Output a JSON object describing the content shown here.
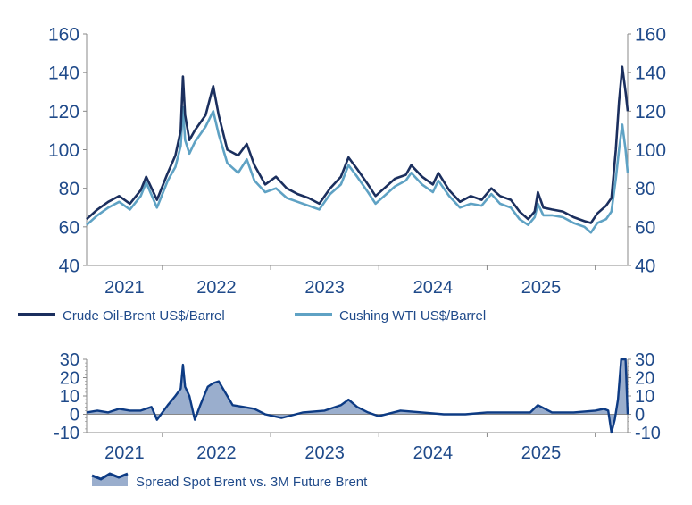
{
  "colors": {
    "brent": "#1b2f5e",
    "wti": "#5fa2c4",
    "spread_line": "#0d3b84",
    "spread_fill": "#9aaecd",
    "axis_text": "#1f4a8a",
    "axis": "#888888"
  },
  "chart_data": [
    {
      "type": "line",
      "title": "",
      "xlabel": "",
      "ylabel": "US$/Barrel",
      "xlim": [
        2021.3,
        2026.3
      ],
      "ylim": [
        40,
        160
      ],
      "yticks": [
        "40",
        "60",
        "80",
        "100",
        "120",
        "140",
        "160"
      ],
      "xtick_labels": [
        "2021",
        "2022",
        "2023",
        "2024",
        "2025"
      ],
      "legend_position": "bottom",
      "x": [
        2021.3,
        2021.4,
        2021.5,
        2021.6,
        2021.7,
        2021.8,
        2021.85,
        2021.95,
        2022.05,
        2022.12,
        2022.17,
        2022.19,
        2022.21,
        2022.25,
        2022.3,
        2022.4,
        2022.47,
        2022.52,
        2022.6,
        2022.7,
        2022.78,
        2022.85,
        2022.95,
        2023.05,
        2023.15,
        2023.25,
        2023.35,
        2023.45,
        2023.55,
        2023.65,
        2023.72,
        2023.8,
        2023.9,
        2023.97,
        2024.05,
        2024.15,
        2024.25,
        2024.3,
        2024.4,
        2024.5,
        2024.55,
        2024.65,
        2024.75,
        2024.85,
        2024.95,
        2025.04,
        2025.12,
        2025.22,
        2025.3,
        2025.38,
        2025.44,
        2025.47,
        2025.52,
        2025.6,
        2025.7,
        2025.8,
        2025.9,
        2025.96,
        2026.02,
        2026.1,
        2026.15,
        2026.19,
        2026.22,
        2026.25,
        2026.28,
        2026.3
      ],
      "series": [
        {
          "name": "Crude Oil-Brent US$/Barrel",
          "values": [
            64,
            69,
            73,
            76,
            72,
            79,
            86,
            74,
            88,
            97,
            110,
            138,
            118,
            105,
            110,
            118,
            133,
            118,
            100,
            97,
            103,
            92,
            82,
            86,
            80,
            77,
            75,
            72,
            80,
            86,
            96,
            90,
            82,
            76,
            80,
            85,
            87,
            92,
            86,
            82,
            88,
            79,
            73,
            76,
            74,
            80,
            76,
            74,
            68,
            64,
            68,
            78,
            70,
            69,
            68,
            65,
            63,
            62,
            67,
            71,
            75,
            100,
            125,
            143,
            130,
            120
          ]
        },
        {
          "name": "Cushing WTI US$/Barrel",
          "values": [
            61,
            66,
            70,
            73,
            69,
            76,
            83,
            70,
            84,
            91,
            102,
            122,
            105,
            98,
            104,
            112,
            120,
            108,
            93,
            88,
            95,
            84,
            78,
            80,
            75,
            73,
            71,
            69,
            77,
            82,
            92,
            86,
            78,
            72,
            76,
            81,
            84,
            88,
            82,
            78,
            84,
            76,
            70,
            72,
            71,
            77,
            72,
            70,
            64,
            61,
            65,
            72,
            66,
            66,
            65,
            62,
            60,
            57,
            62,
            64,
            68,
            85,
            100,
            113,
            100,
            88
          ]
        }
      ]
    },
    {
      "type": "area",
      "title": "",
      "xlim": [
        2021.3,
        2026.3
      ],
      "ylim": [
        -10,
        30
      ],
      "yticks": [
        "-10",
        "0",
        "10",
        "20",
        "30"
      ],
      "xtick_labels": [
        "2021",
        "2022",
        "2023",
        "2024",
        "2025"
      ],
      "legend_position": "bottom-left",
      "x": [
        2021.3,
        2021.4,
        2021.5,
        2021.6,
        2021.7,
        2021.8,
        2021.9,
        2021.95,
        2022.05,
        2022.12,
        2022.17,
        2022.19,
        2022.21,
        2022.25,
        2022.3,
        2022.35,
        2022.42,
        2022.47,
        2022.52,
        2022.58,
        2022.65,
        2022.75,
        2022.85,
        2022.95,
        2023.1,
        2023.3,
        2023.5,
        2023.65,
        2023.72,
        2023.8,
        2023.9,
        2024.0,
        2024.2,
        2024.4,
        2024.6,
        2024.8,
        2025.0,
        2025.2,
        2025.4,
        2025.47,
        2025.6,
        2025.8,
        2026.0,
        2026.08,
        2026.12,
        2026.15,
        2026.18,
        2026.21,
        2026.24,
        2026.28,
        2026.3
      ],
      "series": [
        {
          "name": "Spread Spot Brent vs. 3M Future Brent",
          "values": [
            1,
            2,
            1,
            3,
            2,
            2,
            4,
            -3,
            5,
            10,
            14,
            27,
            15,
            10,
            -3,
            5,
            15,
            17,
            18,
            12,
            5,
            4,
            3,
            0,
            -2,
            1,
            2,
            5,
            8,
            4,
            1,
            -1,
            2,
            1,
            0,
            0,
            1,
            1,
            1,
            5,
            1,
            1,
            2,
            3,
            2,
            -10,
            -3,
            8,
            30,
            30,
            0
          ]
        }
      ]
    }
  ]
}
